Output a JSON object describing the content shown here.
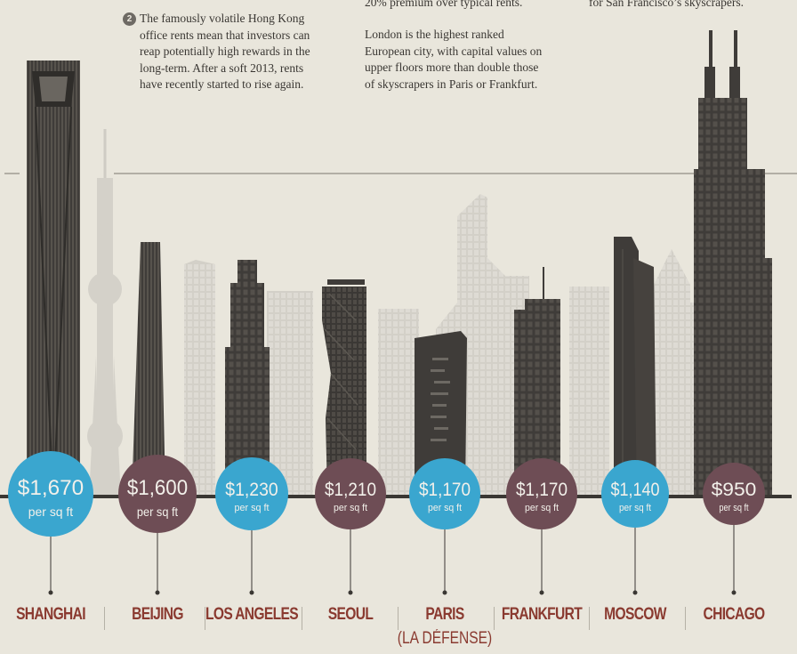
{
  "notes": {
    "hk_number": "2",
    "hk_lines": [
      "The famously volatile Hong Kong",
      "office rents mean that investors can",
      "reap potentially high rewards in the",
      "long-term. After a soft 2013, rents",
      "have recently started to rise again."
    ],
    "top_mid": "20% premium over typical rents.",
    "london_lines": [
      "London is the highest ranked",
      "European city, with capital values on",
      "upper floors more than double those",
      "of skyscrapers in Paris or Frankfurt."
    ],
    "top_right": "for San Francisco’s skyscrapers."
  },
  "cities": [
    {
      "name": "SHANGHAI",
      "value": "$1,670",
      "unit": "per sq ft",
      "color": "#3aa6cf"
    },
    {
      "name": "BEIJING",
      "value": "$1,600",
      "unit": "per sq ft",
      "color": "#6e4d55"
    },
    {
      "name": "LOS ANGELES",
      "value": "$1,230",
      "unit": "per sq ft",
      "color": "#3aa6cf"
    },
    {
      "name": "SEOUL",
      "value": "$1,210",
      "unit": "per sq ft",
      "color": "#6e4d55"
    },
    {
      "name": "PARIS",
      "sub": "(LA DÉFENSE)",
      "value": "$1,170",
      "unit": "per sq ft",
      "color": "#3aa6cf"
    },
    {
      "name": "FRANKFURT",
      "value": "$1,170",
      "unit": "per sq ft",
      "color": "#6e4d55"
    },
    {
      "name": "MOSCOW",
      "value": "$1,140",
      "unit": "per sq ft",
      "color": "#3aa6cf"
    },
    {
      "name": "CHICAGO",
      "value": "$950",
      "unit": "per sq ft",
      "color": "#6e4d55"
    }
  ],
  "colors": {
    "dark_building": "#3f3c39",
    "light_building": "#d1cec6",
    "label": "#8a3a30",
    "bg": "#e9e6dc"
  }
}
